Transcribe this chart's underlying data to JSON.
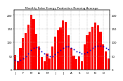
{
  "title": "Monthly Solar Energy Production Running Average",
  "bar_color": "#ff0000",
  "avg_color": "#0000cc",
  "background_color": "#ffffff",
  "grid_color": "#aaaaaa",
  "values": [
    55,
    30,
    80,
    115,
    135,
    165,
    200,
    185,
    130,
    85,
    45,
    30,
    60,
    42,
    85,
    120,
    145,
    155,
    180,
    175,
    125,
    80,
    52,
    38,
    48,
    32,
    92,
    125,
    138,
    158,
    172,
    162,
    138,
    92,
    68,
    42
  ],
  "avg_values": [
    35,
    32,
    36,
    42,
    50,
    60,
    72,
    80,
    82,
    78,
    68,
    58,
    55,
    50,
    50,
    56,
    64,
    72,
    80,
    85,
    84,
    80,
    74,
    68,
    64,
    58,
    60,
    65,
    72,
    79,
    84,
    87,
    88,
    85,
    80,
    75
  ],
  "ylim": [
    0,
    220
  ],
  "yticks": [
    0,
    50,
    100,
    150,
    200
  ],
  "n_bars": 36,
  "title_fontsize": 3.0,
  "tick_fontsize": 2.8
}
